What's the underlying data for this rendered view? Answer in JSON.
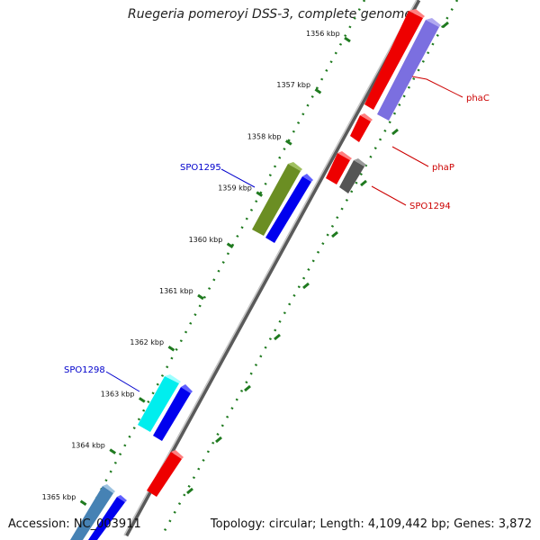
{
  "title": "Ruegeria pomeroyi DSS-3, complete genome",
  "footer": {
    "accession": "Accession: NC_003911",
    "topology": "Topology: circular; Length: 4,109,442 bp; Genes: 3,872"
  },
  "colors": {
    "backbone": "#8c8c8c",
    "tick": "#1f7a1f",
    "label_red": "#cc0000",
    "label_blue": "#0000cc"
  },
  "ruler": [
    "1356 kbp",
    "1357 kbp",
    "1358 kbp",
    "1359 kbp",
    "1360 kbp",
    "1361 kbp",
    "1362 kbp",
    "1363 kbp",
    "1364 kbp",
    "1365 kbp"
  ],
  "gene_labels": [
    {
      "name": "phaC",
      "color": "red"
    },
    {
      "name": "phaP",
      "color": "red"
    },
    {
      "name": "SPO1294",
      "color": "red"
    },
    {
      "name": "SPO1295",
      "color": "blue"
    },
    {
      "name": "SPO1298",
      "color": "blue"
    }
  ]
}
